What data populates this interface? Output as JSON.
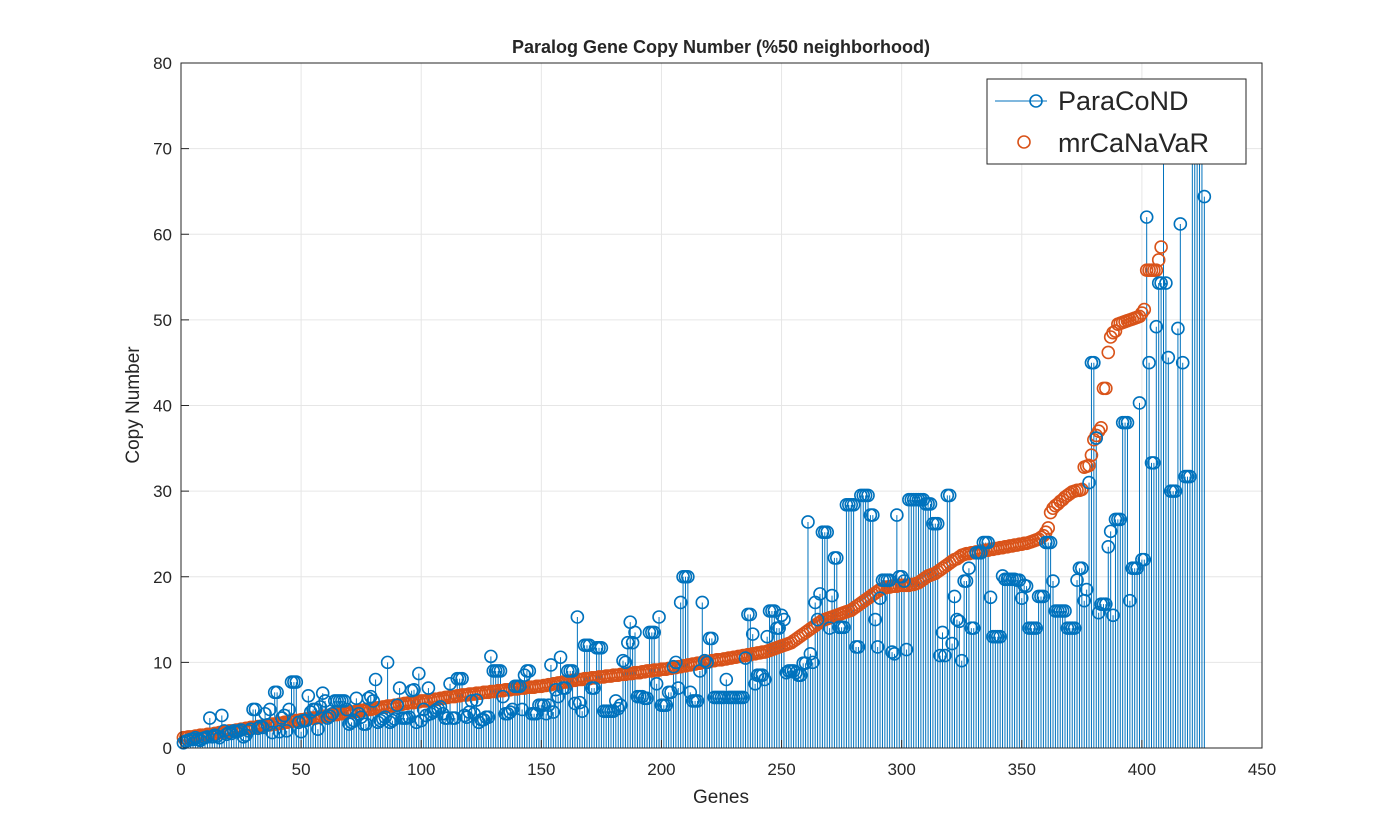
{
  "chart_data": {
    "type": "scatter",
    "title": "Paralog Gene Copy Number (%50 neighborhood)",
    "xlabel": "Genes",
    "ylabel": "Copy Number",
    "xlim": [
      0,
      450
    ],
    "ylim": [
      0,
      80
    ],
    "xticks": [
      "0",
      "50",
      "100",
      "150",
      "200",
      "250",
      "300",
      "350",
      "400",
      "450"
    ],
    "yticks": [
      "0",
      "10",
      "20",
      "30",
      "40",
      "50",
      "60",
      "70",
      "80"
    ],
    "grid": true,
    "legend_position": "top-right",
    "colors": {
      "ParaCoND": "#0072BD",
      "mrCaNaVaR": "#D95319"
    },
    "legend": [
      {
        "name": "ParaCoND",
        "style": "stem"
      },
      {
        "name": "mrCaNaVaR",
        "style": "marker"
      }
    ],
    "series": [
      {
        "name": "ParaCoND",
        "style": "stem",
        "x_start": 1,
        "values": [
          0.6,
          0.8,
          0.9,
          1,
          1,
          1.2,
          1,
          0.9,
          1.1,
          1.2,
          1.3,
          3.5,
          1.3,
          1.5,
          1.4,
          1.2,
          3.8,
          2,
          1.6,
          1.8,
          1.7,
          2,
          1.9,
          2,
          2.1,
          1.3,
          1.5,
          2,
          2.2,
          4.5,
          4.5,
          2.3,
          2.5,
          2.4,
          4,
          2.7,
          4.5,
          1.8,
          6.5,
          6.5,
          1.9,
          3.5,
          3.8,
          2,
          4.5,
          7.7,
          7.7,
          7.7,
          3,
          1.9,
          3.2,
          3.2,
          6.1,
          4.2,
          4.5,
          4.5,
          2.2,
          4.8,
          6.4,
          5.5,
          3.5,
          3.7,
          4,
          5.5,
          5.5,
          5.5,
          5.5,
          5.5,
          4.5,
          2.8,
          3,
          3.2,
          5.8,
          4,
          3.6,
          2.8,
          2.8,
          5.8,
          6,
          5.5,
          8,
          3,
          3.2,
          3.4,
          3.6,
          10,
          3,
          3.2,
          3.4,
          5,
          7,
          3.5,
          3.5,
          3.5,
          3.6,
          6.7,
          6.8,
          3,
          8.7,
          3.2,
          4.5,
          3.8,
          7,
          4,
          4.2,
          4.4,
          4.6,
          4.8,
          4,
          3.5,
          3.5,
          7.5,
          3.5,
          3.5,
          8.1,
          8.1,
          8.1,
          3.8,
          3.6,
          4.2,
          5.5,
          4,
          5.6,
          3,
          3.3,
          3.3,
          3.6,
          3.6,
          10.7,
          9,
          9,
          9,
          9,
          6,
          4,
          4,
          4.2,
          4.5,
          7.2,
          7.2,
          7.2,
          4.5,
          8.5,
          9,
          9,
          4,
          4,
          4,
          5,
          5,
          5,
          4,
          5,
          9.7,
          4.2,
          6.8,
          6,
          10.6,
          7,
          7,
          9,
          9,
          9,
          5.2,
          15.3,
          5.3,
          4.3,
          12,
          12,
          12,
          7,
          7,
          11.7,
          11.7,
          11.7,
          4.3,
          4.3,
          4.3,
          4.3,
          4.3,
          5.5,
          4.6,
          5,
          10.2,
          10,
          12.3,
          14.7,
          12.3,
          13.5,
          6,
          6,
          6,
          5.8,
          5.8,
          13.5,
          13.5,
          13.5,
          7.5,
          15.3,
          5,
          5,
          5,
          6.5,
          6.5,
          9.5,
          10,
          7,
          17,
          20,
          20,
          20,
          6.5,
          5.5,
          5.5,
          5.5,
          9,
          17,
          10.2,
          10,
          12.8,
          12.8,
          5.9,
          5.9,
          5.9,
          5.9,
          5.9,
          8,
          5.9,
          5.9,
          5.9,
          5.9,
          5.9,
          5.9,
          5.9,
          10.5,
          15.6,
          15.6,
          13.3,
          7.5,
          8.5,
          8.5,
          8.5,
          8,
          13,
          16,
          16,
          16,
          14,
          14,
          15.5,
          15,
          8.8,
          9,
          9,
          9,
          8.8,
          8.5,
          8.5,
          9.9,
          9.9,
          26.4,
          11,
          10,
          17,
          15,
          18,
          25.2,
          25.2,
          25.2,
          14,
          17.8,
          22.2,
          22.2,
          14.1,
          14.1,
          14.1,
          28.4,
          28.4,
          28.4,
          28.4,
          11.8,
          11.8,
          29.5,
          29.5,
          29.5,
          29.5,
          27.2,
          27.2,
          15,
          11.8,
          17.5,
          19.6,
          19.6,
          19.6,
          19.6,
          11.2,
          11,
          27.2,
          20,
          20,
          19.5,
          11.5,
          29,
          29,
          29,
          29,
          29,
          29,
          29,
          28.5,
          28.5,
          28.5,
          26.2,
          26.2,
          26.2,
          10.8,
          13.5,
          10.8,
          29.5,
          29.5,
          12.2,
          17.7,
          15,
          14.8,
          10.2,
          19.5,
          19.5,
          21,
          14,
          14,
          22.8,
          22.8,
          22.8,
          24,
          24,
          24,
          17.6,
          13,
          13,
          13,
          13,
          20.1,
          19.7,
          19.7,
          19.7,
          19.7,
          19.7,
          19.6,
          19.6,
          17.5,
          19,
          18.9,
          14,
          14,
          14,
          14,
          17.7,
          17.7,
          17.7,
          24,
          24,
          24,
          19.5,
          16,
          16,
          16,
          16,
          16,
          14,
          14,
          14,
          14,
          19.6,
          21,
          21,
          17.2,
          18.5,
          31,
          45,
          45,
          36.2,
          15.8,
          16.8,
          16.8,
          16.8,
          23.5,
          25.3,
          15.5,
          26.7,
          26.7,
          26.7,
          38,
          38,
          38,
          17.2,
          21,
          21,
          21,
          40.3,
          22,
          22,
          62,
          45,
          33.3,
          33.3,
          49.2,
          54.3,
          54.3,
          71,
          54.3,
          45.6,
          30,
          30,
          30,
          49,
          61.2,
          45,
          31.7,
          31.7,
          31.7,
          70.5,
          70.5,
          70.5,
          70.5,
          70.5,
          64.4
        ]
      },
      {
        "name": "mrCaNaVaR",
        "style": "marker",
        "x_start": 1,
        "values": [
          1.2,
          1.2,
          1.3,
          1.3,
          1.3,
          1.4,
          1.4,
          1.5,
          1.5,
          1.5,
          1.6,
          1.6,
          1.6,
          1.7,
          1.7,
          1.8,
          1.8,
          1.9,
          1.9,
          2,
          2,
          2,
          2.1,
          2.1,
          2.2,
          2.2,
          2.3,
          2.3,
          2.4,
          2.4,
          2.4,
          2.5,
          2.5,
          2.6,
          2.6,
          2.7,
          2.7,
          2.8,
          2.8,
          2.8,
          2.9,
          2.9,
          3,
          3,
          3.1,
          3.1,
          3.2,
          3.2,
          3.2,
          3.3,
          3.3,
          3.4,
          3.4,
          3.5,
          3.5,
          3.5,
          3.6,
          3.6,
          3.7,
          3.7,
          3.8,
          3.8,
          3.9,
          3.9,
          3.9,
          4,
          4,
          4.1,
          4.1,
          4.2,
          4.2,
          4.2,
          4.3,
          4.3,
          4.4,
          4.4,
          4.5,
          4.5,
          4.5,
          4.6,
          4.6,
          4.7,
          4.7,
          4.8,
          4.8,
          4.9,
          4.9,
          4.9,
          5,
          5,
          5.1,
          5.1,
          5.2,
          5.2,
          5.3,
          5.3,
          5.3,
          5.4,
          5.4,
          5.5,
          5.5,
          5.5,
          5.6,
          5.6,
          5.7,
          5.7,
          5.7,
          5.8,
          5.8,
          5.9,
          5.9,
          6,
          6,
          6,
          6.1,
          6.1,
          6.2,
          6.2,
          6.2,
          6.3,
          6.3,
          6.3,
          6.4,
          6.4,
          6.4,
          6.5,
          6.5,
          6.5,
          6.6,
          6.6,
          6.6,
          6.7,
          6.7,
          6.7,
          6.8,
          6.8,
          6.8,
          6.9,
          6.9,
          6.9,
          7,
          7,
          7,
          7.1,
          7.1,
          7.1,
          7.1,
          7.2,
          7.2,
          7.2,
          7.3,
          7.3,
          7.4,
          7.4,
          7.5,
          7.5,
          7.6,
          7.6,
          7.7,
          7.7,
          7.8,
          7.8,
          7.9,
          7.9,
          8,
          8,
          8,
          8.1,
          8.1,
          8.1,
          8.2,
          8.2,
          8.2,
          8.3,
          8.3,
          8.3,
          8.4,
          8.4,
          8.4,
          8.5,
          8.5,
          8.5,
          8.6,
          8.6,
          8.6,
          8.7,
          8.7,
          8.7,
          8.8,
          8.8,
          8.8,
          8.9,
          8.9,
          9,
          9,
          9,
          9.1,
          9.1,
          9.1,
          9.2,
          9.2,
          9.2,
          9.3,
          9.3,
          9.4,
          9.4,
          9.5,
          9.5,
          9.6,
          9.6,
          9.7,
          9.7,
          9.8,
          9.8,
          9.9,
          9.9,
          10,
          10,
          10.1,
          10.1,
          10.2,
          10.2,
          10.3,
          10.3,
          10.3,
          10.4,
          10.4,
          10.5,
          10.5,
          10.6,
          10.6,
          10.7,
          10.7,
          10.8,
          10.8,
          10.9,
          10.9,
          11,
          11,
          11.1,
          11.1,
          11.2,
          11.2,
          11.3,
          11.4,
          11.5,
          11.6,
          11.7,
          11.8,
          11.9,
          12,
          12.1,
          12.2,
          12.3,
          12.5,
          12.7,
          12.9,
          13.1,
          13.3,
          13.5,
          13.7,
          13.9,
          14.1,
          14.3,
          14.5,
          14.7,
          14.9,
          15,
          15.1,
          15.2,
          15.3,
          15.4,
          15.5,
          15.6,
          15.7,
          15.8,
          15.9,
          16,
          16.1,
          16.3,
          16.5,
          16.7,
          16.9,
          17.1,
          17.3,
          17.5,
          17.7,
          17.9,
          18.1,
          18.3,
          18.5,
          18.6,
          18.7,
          18.8,
          18.8,
          18.9,
          18.9,
          18.9,
          19,
          19,
          19,
          19,
          19,
          19.1,
          19.1,
          19.2,
          19.3,
          19.5,
          19.7,
          19.9,
          20.1,
          20.2,
          20.3,
          20.4,
          20.6,
          20.8,
          21,
          21.2,
          21.4,
          21.6,
          21.8,
          22,
          22.1,
          22.3,
          22.5,
          22.6,
          22.7,
          22.7,
          22.8,
          22.8,
          22.9,
          22.9,
          23,
          23,
          23.1,
          23.1,
          23.2,
          23.2,
          23.3,
          23.3,
          23.4,
          23.4,
          23.5,
          23.5,
          23.6,
          23.6,
          23.7,
          23.7,
          23.8,
          23.8,
          23.9,
          23.9,
          24,
          24.1,
          24.2,
          24.3,
          24.4,
          24.6,
          24.8,
          25.2,
          25.7,
          27.5,
          28,
          28.3,
          28.5,
          28.8,
          29,
          29.3,
          29.5,
          29.7,
          29.9,
          30,
          30.1,
          30.1,
          30.2,
          32.8,
          32.9,
          33,
          34.2,
          36,
          36.5,
          37,
          37.4,
          42,
          42,
          46.2,
          48,
          48.5,
          48.7,
          49.5,
          49.6,
          49.7,
          49.8,
          49.9,
          50,
          50.1,
          50.2,
          50.3,
          50.4,
          50.8,
          51.2,
          55.8,
          55.8,
          55.8,
          55.8,
          55.8,
          57,
          58.5
        ]
      }
    ]
  }
}
